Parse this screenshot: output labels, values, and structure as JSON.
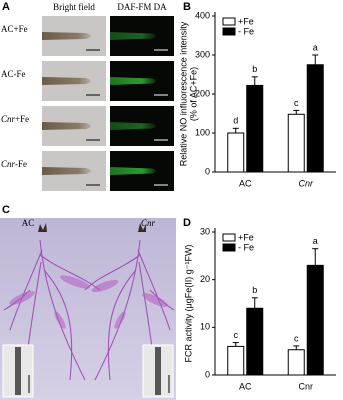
{
  "panel_a": {
    "label": "A",
    "columns": [
      "Bright field",
      "DAF-FM DA"
    ],
    "rows": [
      {
        "strain": "AC",
        "treatment": "+Fe"
      },
      {
        "strain": "AC",
        "treatment": "-Fe"
      },
      {
        "strain": "Cnr",
        "treatment": "+Fe"
      },
      {
        "strain": "Cnr",
        "treatment": "-Fe"
      }
    ]
  },
  "panel_c": {
    "label": "C",
    "left": "AC",
    "right": "Cnr"
  },
  "chart_data": [
    {
      "type": "bar",
      "label": "B",
      "ylabel": [
        "Relative NO influorescence intensity",
        "(% of AC+Fe)"
      ],
      "categories": [
        "AC",
        "Cnr"
      ],
      "italic_categories": [
        false,
        true
      ],
      "series": [
        {
          "name": "+Fe",
          "color": "#ffffff",
          "values": [
            100,
            148
          ],
          "errors": [
            12,
            10
          ],
          "letters": [
            "d",
            "c"
          ]
        },
        {
          "name": "- Fe",
          "color": "#000000",
          "values": [
            222,
            275
          ],
          "errors": [
            22,
            25
          ],
          "letters": [
            "b",
            "a"
          ]
        }
      ],
      "ylim": [
        0,
        400
      ],
      "yticks": [
        0,
        100,
        200,
        300,
        400
      ],
      "legend": "upper left"
    },
    {
      "type": "bar",
      "label": "D",
      "ylabel": [
        "FCR activity (μgFe(II) g⁻¹FW)"
      ],
      "categories": [
        "AC",
        "Cnr"
      ],
      "italic_categories": [
        false,
        false
      ],
      "series": [
        {
          "name": "+Fe",
          "color": "#ffffff",
          "values": [
            6,
            5.3
          ],
          "errors": [
            0.8,
            0.8
          ],
          "letters": [
            "c",
            "c"
          ]
        },
        {
          "name": "- Fe",
          "color": "#000000",
          "values": [
            14,
            23
          ],
          "errors": [
            2.2,
            3.5
          ],
          "letters": [
            "b",
            "a"
          ]
        }
      ],
      "ylim": [
        0,
        30
      ],
      "yticks": [
        0,
        10,
        20,
        30
      ],
      "legend": "upper left"
    }
  ]
}
